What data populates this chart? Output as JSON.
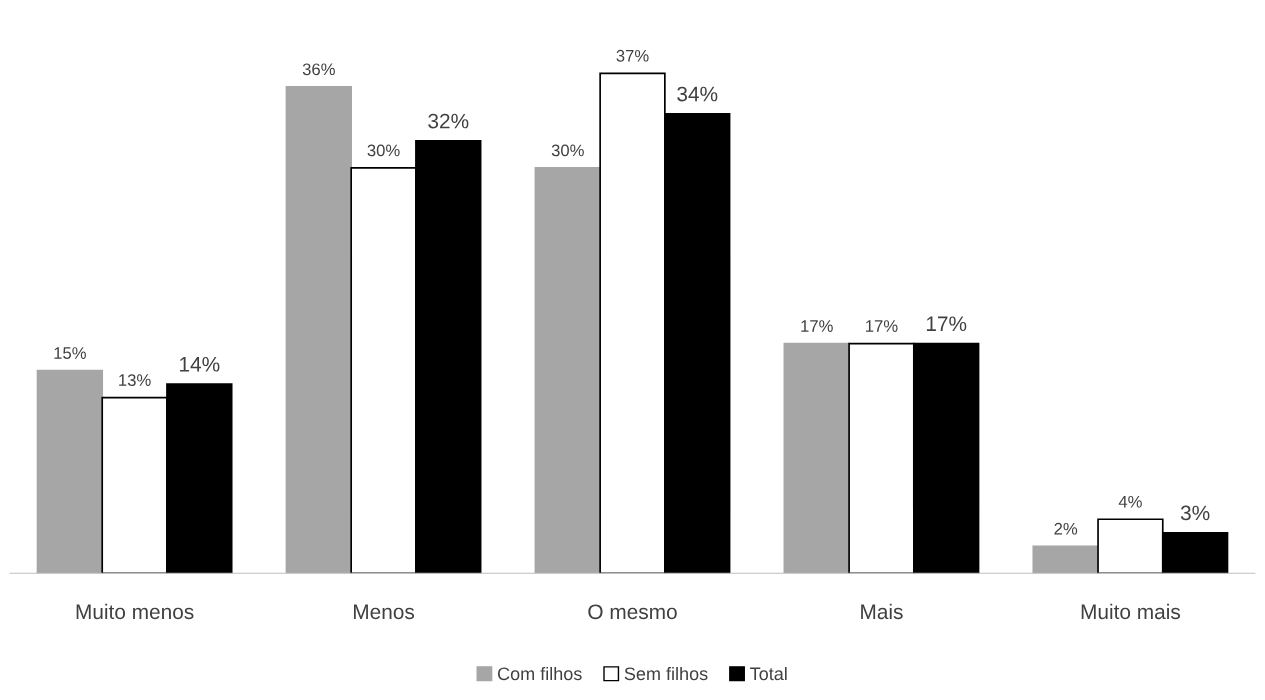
{
  "chart_data": {
    "type": "bar",
    "categories": [
      "Muito menos",
      "Menos",
      "O mesmo",
      "Mais",
      "Muito mais"
    ],
    "series": [
      {
        "name": "Com filhos",
        "color": "#a6a6a6",
        "values": [
          15,
          36,
          30,
          17,
          2
        ],
        "value_labels": [
          "15%",
          "36%",
          "30%",
          "17%",
          "2%"
        ]
      },
      {
        "name": "Sem filhos",
        "color": "#ffffff",
        "values": [
          13,
          30,
          37,
          17,
          4
        ],
        "value_labels": [
          "13%",
          "30%",
          "37%",
          "17%",
          "4%"
        ]
      },
      {
        "name": "Total",
        "color": "#000000",
        "values": [
          14,
          32,
          34,
          17,
          3
        ],
        "value_labels": [
          "14%",
          "32%",
          "34%",
          "17%",
          "3%"
        ]
      }
    ],
    "legend": "bottom",
    "grid": false
  }
}
